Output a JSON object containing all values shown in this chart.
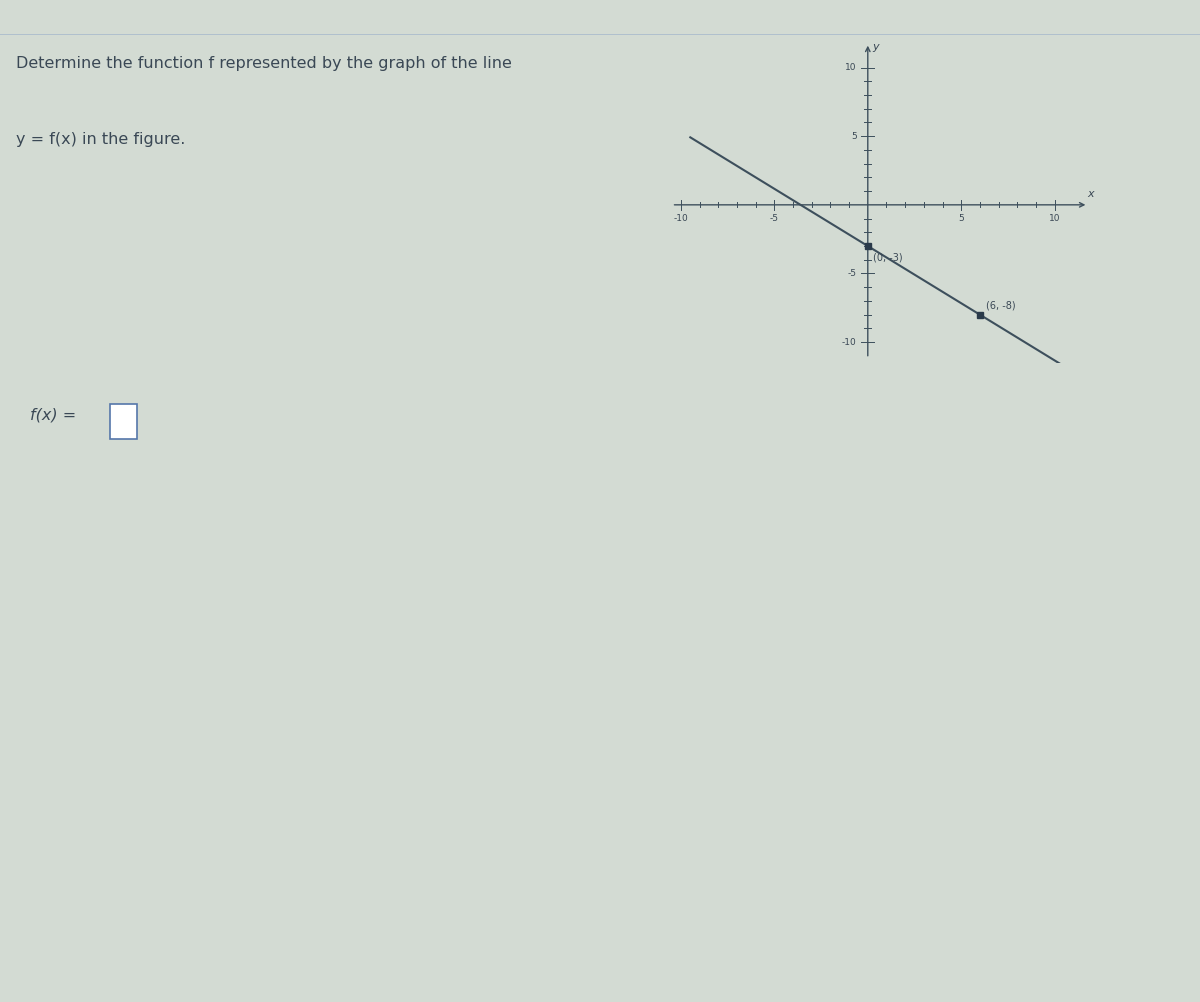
{
  "title_line1": "Determine the function f represented by the graph of the line",
  "title_line2": "y = f(x) in the figure.",
  "input_label": "f(x) =",
  "slope": -0.8333333333333334,
  "intercept": -3,
  "x_range": [
    -10,
    10
  ],
  "y_range": [
    -10,
    10
  ],
  "point1": [
    0,
    -3
  ],
  "point2": [
    6,
    -8
  ],
  "point1_label": "(0, -3)",
  "point2_label": "(6, -8)",
  "axis_tick_major": 5,
  "axis_label_x": "x",
  "axis_label_y": "y",
  "line_color": "#3d4f5c",
  "point_color": "#2a3a4a",
  "text_color": "#3a4855",
  "bg_color": "#d3dbd3",
  "border_color": "#9aaabb",
  "divider_color": "#aabbcc"
}
